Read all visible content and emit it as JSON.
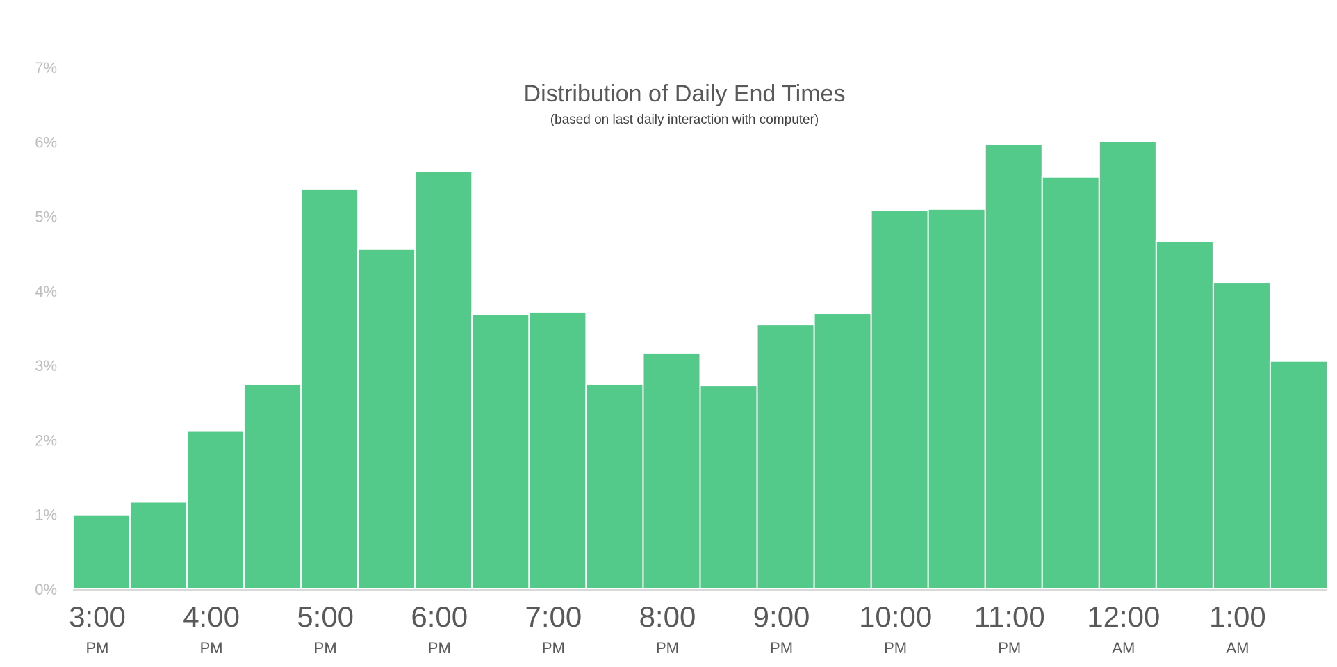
{
  "chart_data": {
    "type": "bar",
    "title": "Distribution of Daily End Times",
    "subtitle": "(based on last daily interaction with computer)",
    "xlabel": "",
    "ylabel": "",
    "ylim": [
      0,
      7
    ],
    "yticks": [
      {
        "value": 0,
        "label": "0%"
      },
      {
        "value": 1,
        "label": "1%"
      },
      {
        "value": 2,
        "label": "2%"
      },
      {
        "value": 3,
        "label": "3%"
      },
      {
        "value": 4,
        "label": "4%"
      },
      {
        "value": 5,
        "label": "5%"
      },
      {
        "value": 6,
        "label": "6%"
      },
      {
        "value": 7,
        "label": "7%"
      }
    ],
    "categories": [
      "3:00 PM",
      "3:30 PM",
      "4:00 PM",
      "4:30 PM",
      "5:00 PM",
      "5:30 PM",
      "6:00 PM",
      "6:30 PM",
      "7:00 PM",
      "7:30 PM",
      "8:00 PM",
      "8:30 PM",
      "9:00 PM",
      "9:30 PM",
      "10:00 PM",
      "10:30 PM",
      "11:00 PM",
      "11:30 PM",
      "12:00 AM",
      "12:30 AM",
      "1:00 AM",
      "1:30 AM"
    ],
    "values": [
      1.0,
      1.17,
      2.12,
      2.75,
      5.37,
      4.56,
      5.61,
      3.69,
      3.72,
      2.75,
      3.17,
      2.73,
      3.55,
      3.7,
      5.08,
      5.1,
      5.97,
      5.53,
      6.01,
      4.67,
      4.11,
      3.06
    ],
    "xtick_labels": [
      {
        "time": "3:00",
        "period": "PM"
      },
      {
        "time": "4:00",
        "period": "PM"
      },
      {
        "time": "5:00",
        "period": "PM"
      },
      {
        "time": "6:00",
        "period": "PM"
      },
      {
        "time": "7:00",
        "period": "PM"
      },
      {
        "time": "8:00",
        "period": "PM"
      },
      {
        "time": "9:00",
        "period": "PM"
      },
      {
        "time": "10:00",
        "period": "PM"
      },
      {
        "time": "11:00",
        "period": "PM"
      },
      {
        "time": "12:00",
        "period": "AM"
      },
      {
        "time": "1:00",
        "period": "AM"
      }
    ],
    "grid": false,
    "legend": "none",
    "colors": {
      "bar": "#53c98a",
      "bar_edge": "#ffffff",
      "axis": "#d9d9d9",
      "title": "#595959",
      "ytick": "#bfbfbf",
      "xtick": "#595959"
    }
  }
}
